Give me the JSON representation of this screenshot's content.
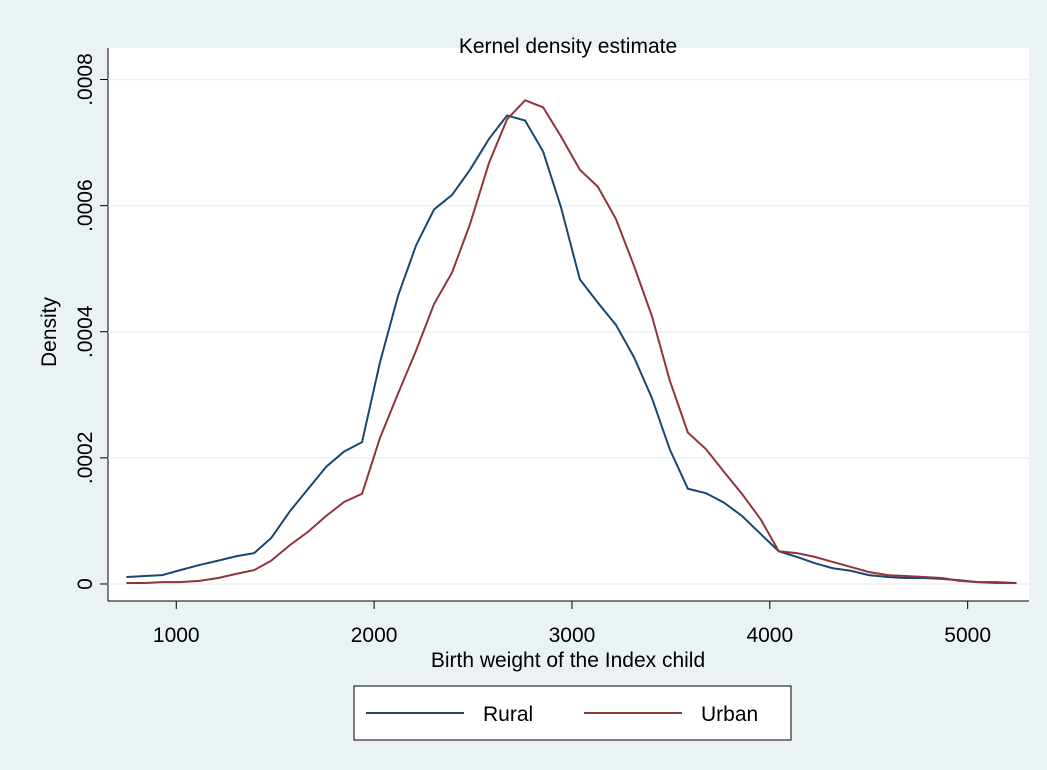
{
  "chart_data": {
    "type": "line",
    "title": "Kernel density estimate",
    "x_label": "Birth weight of the Index child",
    "y_label": "Density",
    "x": [
      748,
      843,
      929,
      1020,
      1116,
      1212,
      1303,
      1394,
      1480,
      1576,
      1667,
      1758,
      1848,
      1939,
      2030,
      2121,
      2212,
      2303,
      2394,
      2485,
      2581,
      2672,
      2763,
      2854,
      2944,
      3040,
      3131,
      3222,
      3313,
      3404,
      3495,
      3586,
      3677,
      3768,
      3859,
      3955,
      4045,
      4136,
      4227,
      4318,
      4409,
      4500,
      4596,
      4687,
      4778,
      4869,
      4960,
      5051,
      5141,
      5247
    ],
    "series": [
      {
        "name": "Rural",
        "color": "#1a476f",
        "values": [
          1.1e-05,
          1.27e-05,
          1.4e-05,
          2.2e-05,
          3e-05,
          3.7e-05,
          4.4e-05,
          4.9e-05,
          7.3e-05,
          0.000116,
          0.000151,
          0.000186,
          0.00021,
          0.000225,
          0.000352,
          0.000457,
          0.000537,
          0.000594,
          0.000617,
          0.000657,
          0.000706,
          0.000743,
          0.000735,
          0.000686,
          0.000598,
          0.000483,
          0.000446,
          0.000411,
          0.00036,
          0.000295,
          0.000213,
          0.000151,
          0.000144,
          0.000129,
          0.000108,
          7.9e-05,
          5.2e-05,
          4.3e-05,
          3.3e-05,
          2.5e-05,
          2.1e-05,
          1.4e-05,
          1.1e-05,
          9.5e-06,
          9.5e-06,
          8e-06,
          6e-06,
          3e-06,
          3e-06,
          1.6e-06
        ]
      },
      {
        "name": "Urban",
        "color": "#90353b",
        "values": [
          1.6e-06,
          1.6e-06,
          3e-06,
          3e-06,
          5e-06,
          9.5e-06,
          1.6e-05,
          2.2e-05,
          3.7e-05,
          6.2e-05,
          8.3e-05,
          0.000108,
          0.00013,
          0.000143,
          0.000232,
          0.000302,
          0.00037,
          0.000444,
          0.000494,
          0.000571,
          0.000668,
          0.000737,
          0.000767,
          0.000756,
          0.00071,
          0.000657,
          0.00063,
          0.000579,
          0.000505,
          0.000425,
          0.000322,
          0.00024,
          0.000214,
          0.000178,
          0.000143,
          0.000102,
          5.2e-05,
          4.9e-05,
          4.3e-05,
          3.5e-05,
          2.7e-05,
          1.9e-05,
          1.4e-05,
          1.27e-05,
          1.1e-05,
          9.5e-06,
          5e-06,
          3e-06,
          1.6e-06,
          1.6e-06
        ]
      }
    ],
    "xlim": [
      655,
      5310
    ],
    "ylim": [
      -2.7e-05,
      0.00085
    ],
    "xticks": [
      1000,
      2000,
      3000,
      4000,
      5000
    ],
    "yticks": [
      0,
      {
        "value": 0.0002,
        "label": ".0002"
      },
      {
        "value": 0.0004,
        "label": ".0004"
      },
      {
        "value": 0.0006,
        "label": ".0006"
      },
      {
        "value": 0.0008,
        "label": ".0008"
      }
    ],
    "grid": true,
    "legend": "bottom"
  }
}
